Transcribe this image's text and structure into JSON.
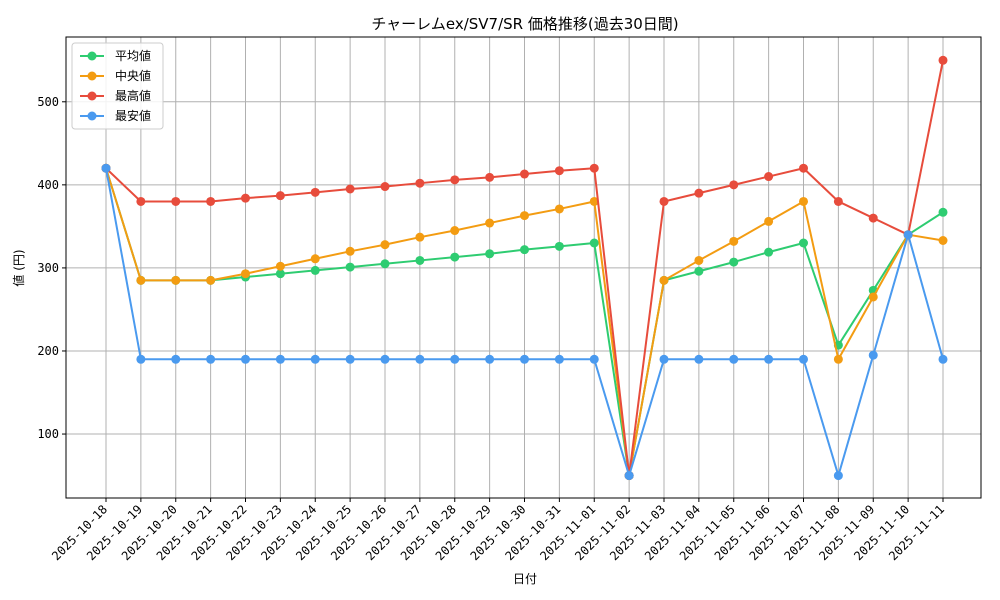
{
  "chart_data": {
    "type": "line",
    "title": "チャーレムex/SV7/SR 価格推移(過去30日間)",
    "xlabel": "日付",
    "ylabel": "値 (円)",
    "categories": [
      "2025-10-18",
      "2025-10-19",
      "2025-10-20",
      "2025-10-21",
      "2025-10-22",
      "2025-10-23",
      "2025-10-24",
      "2025-10-25",
      "2025-10-26",
      "2025-10-27",
      "2025-10-28",
      "2025-10-29",
      "2025-10-30",
      "2025-10-31",
      "2025-11-01",
      "2025-11-02",
      "2025-11-03",
      "2025-11-04",
      "2025-11-05",
      "2025-11-06",
      "2025-11-07",
      "2025-11-08",
      "2025-11-09",
      "2025-11-10",
      "2025-11-11"
    ],
    "ylim": [
      23,
      578
    ],
    "yticks": [
      100,
      200,
      300,
      400,
      500
    ],
    "grid": true,
    "legend_position": "top-left",
    "series": [
      {
        "name": "平均値",
        "color": "#2ecc71",
        "values": [
          420,
          285,
          285,
          285,
          289,
          293,
          297,
          301,
          305,
          309,
          313,
          317,
          322,
          326,
          330,
          50,
          285,
          296,
          307,
          319,
          330,
          207,
          273,
          340,
          367
        ]
      },
      {
        "name": "中央値",
        "color": "#f39c12",
        "values": [
          420,
          285,
          285,
          285,
          293,
          302,
          311,
          320,
          328,
          337,
          345,
          354,
          363,
          371,
          380,
          50,
          285,
          309,
          332,
          356,
          380,
          190,
          265,
          340,
          333
        ]
      },
      {
        "name": "最高値",
        "color": "#e74c3c",
        "values": [
          420,
          380,
          380,
          380,
          384,
          387,
          391,
          395,
          398,
          402,
          406,
          409,
          413,
          417,
          420,
          50,
          380,
          390,
          400,
          410,
          420,
          380,
          360,
          340,
          550
        ]
      },
      {
        "name": "最安値",
        "color": "#4a9aef",
        "values": [
          420,
          190,
          190,
          190,
          190,
          190,
          190,
          190,
          190,
          190,
          190,
          190,
          190,
          190,
          190,
          50,
          190,
          190,
          190,
          190,
          190,
          50,
          195,
          340,
          190
        ]
      }
    ]
  }
}
